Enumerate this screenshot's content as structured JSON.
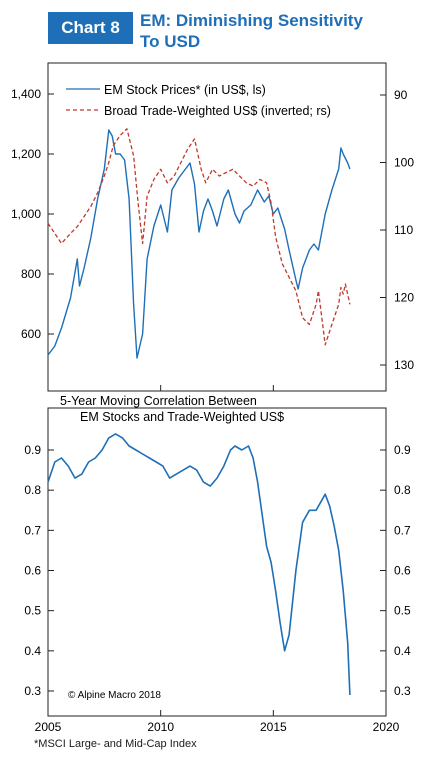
{
  "header": {
    "badge": "Chart 8",
    "title_line1": "EM: Diminishing Sensitivity",
    "title_line2": "To USD"
  },
  "footnote": "*MSCI Large- and Mid-Cap Index",
  "copyright": "© Alpine Macro 2018",
  "colors": {
    "accent": "#1e6fb8",
    "em_line": "#1e6fb8",
    "usd_line": "#c0392b"
  },
  "chart_data": [
    {
      "type": "line",
      "title": "",
      "xlim": [
        2005,
        2020
      ],
      "ylim_left": [
        500,
        1450
      ],
      "ylim_right_inverted": [
        85,
        135
      ],
      "left_ticks": [
        600,
        800,
        1000,
        1200,
        1400
      ],
      "left_tick_labels": [
        "600",
        "800",
        "1,000",
        "1,200",
        "1,400"
      ],
      "right_ticks": [
        90,
        100,
        110,
        120,
        130
      ],
      "legend_position": "top-left",
      "series": [
        {
          "name": "EM Stock Prices* (in US$, ls)",
          "axis": "left",
          "style": "solid",
          "x": [
            2005.0,
            2005.3,
            2005.6,
            2006.0,
            2006.3,
            2006.4,
            2006.6,
            2006.9,
            2007.2,
            2007.5,
            2007.7,
            2007.85,
            2008.0,
            2008.2,
            2008.4,
            2008.6,
            2008.8,
            2008.95,
            2009.2,
            2009.4,
            2009.7,
            2010.0,
            2010.3,
            2010.5,
            2010.8,
            2011.0,
            2011.3,
            2011.5,
            2011.7,
            2011.9,
            2012.1,
            2012.3,
            2012.5,
            2012.8,
            2013.0,
            2013.3,
            2013.5,
            2013.7,
            2014.0,
            2014.3,
            2014.6,
            2014.8,
            2015.0,
            2015.2,
            2015.5,
            2015.7,
            2016.0,
            2016.1,
            2016.3,
            2016.6,
            2016.8,
            2017.0,
            2017.3,
            2017.6,
            2017.9,
            2018.0,
            2018.1,
            2018.3,
            2018.4
          ],
          "values": [
            530,
            560,
            620,
            720,
            850,
            760,
            820,
            920,
            1050,
            1150,
            1280,
            1260,
            1200,
            1200,
            1180,
            1050,
            700,
            520,
            600,
            850,
            960,
            1030,
            940,
            1080,
            1120,
            1140,
            1170,
            1100,
            940,
            1010,
            1050,
            1010,
            960,
            1050,
            1080,
            1000,
            970,
            1010,
            1030,
            1080,
            1040,
            1060,
            1000,
            1020,
            950,
            880,
            780,
            750,
            820,
            880,
            900,
            880,
            1000,
            1080,
            1150,
            1220,
            1200,
            1170,
            1150
          ]
        },
        {
          "name": "Broad Trade-Weighted US$ (inverted; rs)",
          "axis": "right",
          "style": "dashed",
          "x": [
            2005.0,
            2005.3,
            2005.6,
            2006.0,
            2006.3,
            2006.6,
            2006.9,
            2007.2,
            2007.5,
            2007.7,
            2007.9,
            2008.2,
            2008.5,
            2008.8,
            2009.0,
            2009.2,
            2009.4,
            2009.7,
            2010.0,
            2010.3,
            2010.6,
            2010.9,
            2011.2,
            2011.5,
            2011.8,
            2012.0,
            2012.3,
            2012.6,
            2012.9,
            2013.2,
            2013.5,
            2013.8,
            2014.1,
            2014.4,
            2014.7,
            2014.9,
            2015.1,
            2015.4,
            2015.7,
            2016.0,
            2016.3,
            2016.6,
            2016.9,
            2017.0,
            2017.3,
            2017.6,
            2017.9,
            2018.0,
            2018.1,
            2018.2,
            2018.4
          ],
          "values": [
            109,
            110.5,
            112,
            110.5,
            109.5,
            108,
            106.5,
            104.5,
            102,
            100,
            97.5,
            96,
            95,
            99,
            106,
            112,
            105,
            102.5,
            101,
            103,
            102,
            100,
            98,
            96.5,
            101,
            103,
            101,
            102,
            101.5,
            101,
            102,
            103,
            103.5,
            102.5,
            103,
            106,
            111,
            115,
            117,
            119,
            123,
            124,
            121,
            119,
            127,
            124,
            121,
            118.5,
            119.5,
            118,
            121
          ]
        }
      ]
    },
    {
      "type": "line",
      "title": "5-Year Moving Correlation Between EM Stocks and Trade-Weighted US$",
      "xlim": [
        2005,
        2020
      ],
      "ylim": [
        0.27,
        0.99
      ],
      "y_ticks": [
        0.3,
        0.4,
        0.5,
        0.6,
        0.7,
        0.8,
        0.9
      ],
      "y_tick_labels": [
        "0.3",
        "0.4",
        "0.5",
        "0.6",
        "0.7",
        "0.8",
        "0.9"
      ],
      "x_ticks": [
        2005,
        2010,
        2015,
        2020
      ],
      "x_tick_labels": [
        "2005",
        "2010",
        "2015",
        "2020"
      ],
      "series": [
        {
          "name": "",
          "x": [
            2005.0,
            2005.3,
            2005.6,
            2005.9,
            2006.2,
            2006.5,
            2006.8,
            2007.1,
            2007.4,
            2007.7,
            2008.0,
            2008.3,
            2008.6,
            2008.9,
            2009.2,
            2009.5,
            2009.8,
            2010.1,
            2010.4,
            2010.7,
            2011.0,
            2011.3,
            2011.6,
            2011.9,
            2012.2,
            2012.5,
            2012.8,
            2013.1,
            2013.3,
            2013.6,
            2013.9,
            2014.1,
            2014.3,
            2014.5,
            2014.7,
            2014.9,
            2015.1,
            2015.3,
            2015.5,
            2015.7,
            2016.0,
            2016.3,
            2016.6,
            2016.9,
            2017.1,
            2017.3,
            2017.5,
            2017.7,
            2017.9,
            2018.1,
            2018.3,
            2018.4
          ],
          "values": [
            0.82,
            0.87,
            0.88,
            0.86,
            0.83,
            0.84,
            0.87,
            0.88,
            0.9,
            0.93,
            0.94,
            0.93,
            0.91,
            0.9,
            0.89,
            0.88,
            0.87,
            0.86,
            0.83,
            0.84,
            0.85,
            0.86,
            0.85,
            0.82,
            0.81,
            0.83,
            0.86,
            0.9,
            0.91,
            0.9,
            0.91,
            0.88,
            0.82,
            0.74,
            0.66,
            0.62,
            0.55,
            0.47,
            0.4,
            0.44,
            0.6,
            0.72,
            0.75,
            0.75,
            0.77,
            0.79,
            0.76,
            0.71,
            0.65,
            0.55,
            0.42,
            0.29
          ]
        }
      ]
    }
  ]
}
